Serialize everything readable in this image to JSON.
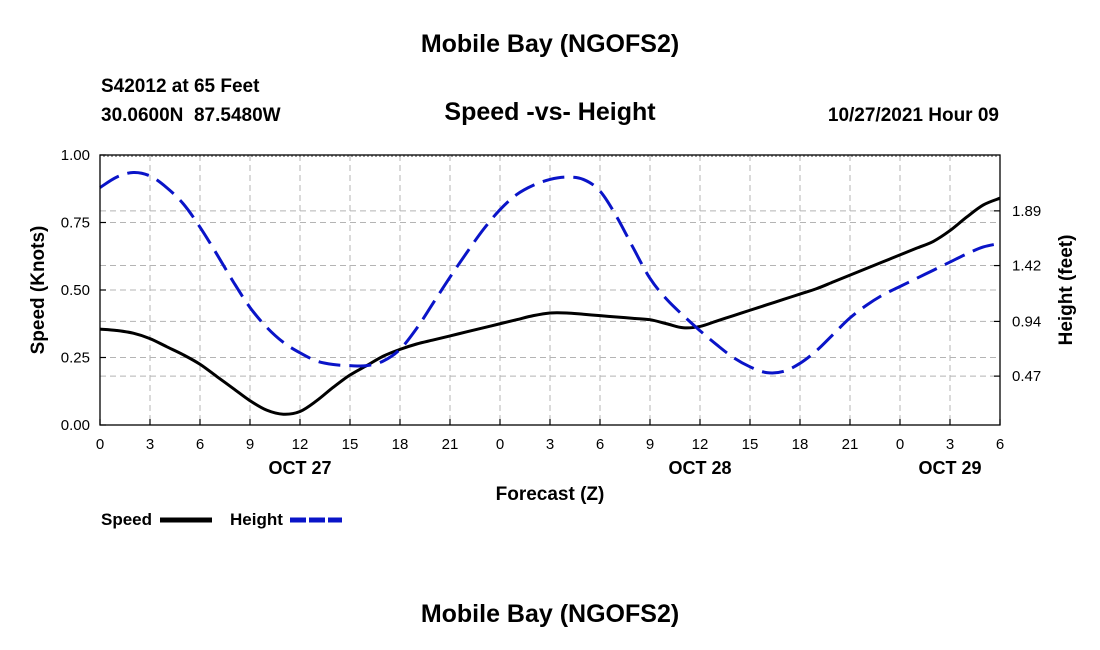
{
  "page": {
    "title_top": "Mobile Bay (NGOFS2)",
    "title_bottom": "Mobile Bay (NGOFS2)",
    "station": "S42012 at 65 Feet",
    "coordinates": "30.0600N  87.5480W",
    "chart_title": "Speed -vs- Height",
    "datetime": "10/27/2021 Hour 09"
  },
  "colors": {
    "speed": "#000000",
    "height": "#0a14c8",
    "grid": "#b4b4b4"
  },
  "chart_data": {
    "type": "line",
    "xlabel": "Forecast (Z)",
    "ylabel": "Speed (Knots)",
    "y2label": "Height (feet)",
    "x_unit": "hours from 00Z Oct 26",
    "xlim": [
      0,
      54
    ],
    "ylim": [
      0,
      1.0
    ],
    "y2lim": [
      0.05,
      2.37
    ],
    "x_ticks": [
      0,
      3,
      6,
      9,
      12,
      15,
      18,
      21,
      24,
      27,
      30,
      33,
      36,
      39,
      42,
      45,
      48,
      51,
      54
    ],
    "x_tick_labels": [
      "0",
      "3",
      "6",
      "9",
      "12",
      "15",
      "18",
      "21",
      "0",
      "3",
      "6",
      "9",
      "12",
      "15",
      "18",
      "21",
      "0",
      "3",
      "6"
    ],
    "date_labels": [
      {
        "x": 12,
        "label": "OCT 27"
      },
      {
        "x": 36,
        "label": "OCT 28"
      },
      {
        "x": 51,
        "label": "OCT 29"
      }
    ],
    "y_ticks": [
      0,
      0.25,
      0.5,
      0.75,
      1.0
    ],
    "y_tick_labels": [
      "0.00",
      "0.25",
      "0.50",
      "0.75",
      "1.00"
    ],
    "y2_ticks": [
      0.47,
      0.94,
      1.42,
      1.89
    ],
    "y2_tick_labels": [
      "0.47",
      "0.94",
      "1.42",
      "1.89"
    ],
    "series": [
      {
        "name": "Speed",
        "axis": "left",
        "style": "solid",
        "x": [
          0,
          1,
          2,
          3,
          4,
          5,
          6,
          7,
          8,
          9,
          10,
          11,
          12,
          13,
          14,
          15,
          16,
          17,
          18,
          19,
          20,
          21,
          22,
          23,
          24,
          25,
          26,
          27,
          28,
          29,
          30,
          31,
          32,
          33,
          34,
          35,
          36,
          37,
          38,
          39,
          40,
          41,
          42,
          43,
          44,
          45,
          46,
          47,
          48,
          49,
          50,
          51,
          52,
          53,
          54
        ],
        "values": [
          0.355,
          0.35,
          0.34,
          0.32,
          0.29,
          0.26,
          0.225,
          0.18,
          0.135,
          0.09,
          0.055,
          0.04,
          0.05,
          0.09,
          0.14,
          0.185,
          0.22,
          0.255,
          0.28,
          0.3,
          0.315,
          0.33,
          0.345,
          0.36,
          0.375,
          0.39,
          0.405,
          0.415,
          0.415,
          0.41,
          0.405,
          0.4,
          0.395,
          0.39,
          0.375,
          0.36,
          0.365,
          0.385,
          0.405,
          0.425,
          0.445,
          0.465,
          0.485,
          0.505,
          0.53,
          0.555,
          0.58,
          0.605,
          0.63,
          0.655,
          0.68,
          0.72,
          0.77,
          0.815,
          0.84
        ]
      },
      {
        "name": "Height",
        "axis": "right",
        "style": "dashed",
        "x": [
          0,
          1,
          2,
          3,
          4,
          5,
          6,
          7,
          8,
          9,
          10,
          11,
          12,
          13,
          14,
          15,
          16,
          17,
          18,
          19,
          20,
          21,
          22,
          23,
          24,
          25,
          26,
          27,
          28,
          29,
          30,
          31,
          32,
          33,
          34,
          35,
          36,
          37,
          38,
          39,
          40,
          41,
          42,
          43,
          44,
          45,
          46,
          47,
          48,
          49,
          50,
          51,
          52,
          53,
          54
        ],
        "values": [
          2.09,
          2.18,
          2.22,
          2.19,
          2.09,
          1.95,
          1.75,
          1.52,
          1.28,
          1.06,
          0.89,
          0.76,
          0.67,
          0.6,
          0.57,
          0.56,
          0.56,
          0.6,
          0.7,
          0.88,
          1.1,
          1.32,
          1.53,
          1.73,
          1.9,
          2.03,
          2.11,
          2.16,
          2.18,
          2.16,
          2.06,
          1.84,
          1.57,
          1.31,
          1.13,
          0.99,
          0.86,
          0.74,
          0.63,
          0.55,
          0.5,
          0.51,
          0.58,
          0.69,
          0.83,
          0.97,
          1.08,
          1.17,
          1.24,
          1.31,
          1.38,
          1.45,
          1.52,
          1.58,
          1.61
        ]
      }
    ],
    "legend": [
      {
        "label": "Speed",
        "series": 0
      },
      {
        "label": "Height",
        "series": 1
      }
    ]
  }
}
